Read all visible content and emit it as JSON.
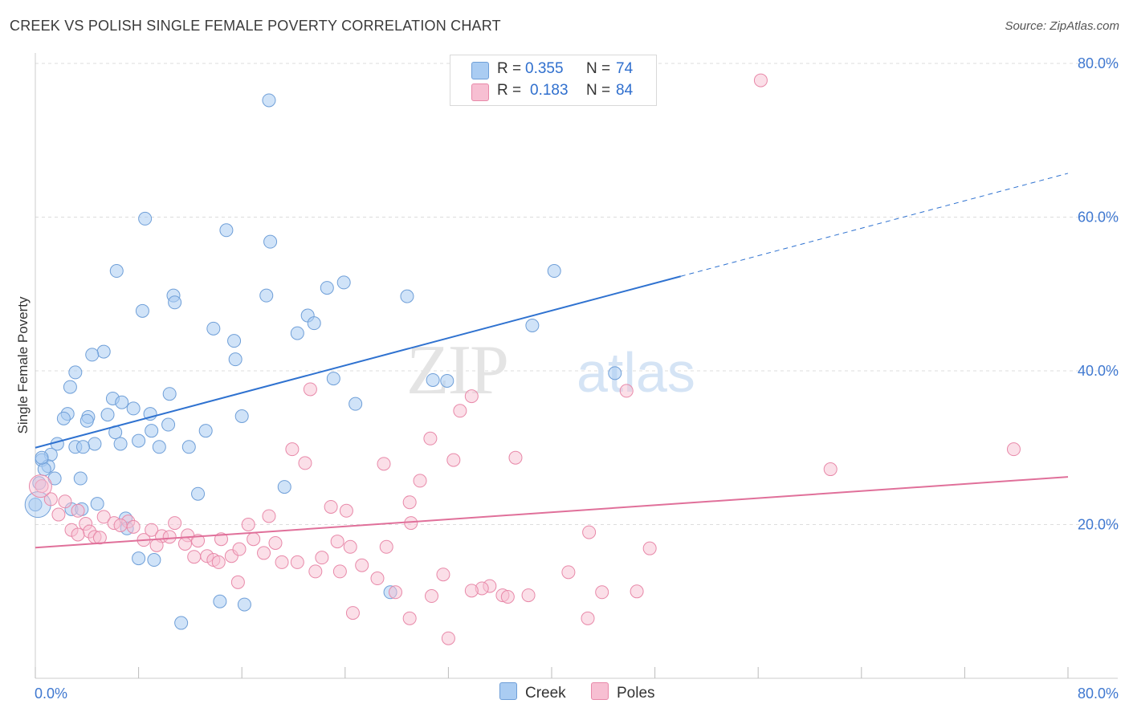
{
  "header": {
    "title": "CREEK VS POLISH SINGLE FEMALE POVERTY CORRELATION CHART",
    "source": "Source: ZipAtlas.com"
  },
  "watermark": {
    "left": "ZIP",
    "right": "atlas"
  },
  "legend": {
    "rows": [
      {
        "series": "Creek",
        "r_label": "R =",
        "r_value": "0.355",
        "n_label": "N =",
        "n_value": "74"
      },
      {
        "series": "Poles",
        "r_label": "R =",
        "r_value": "0.183",
        "n_label": "N =",
        "n_value": "84"
      }
    ],
    "bottom": [
      {
        "label": "Creek"
      },
      {
        "label": "Poles"
      }
    ]
  },
  "colors": {
    "creek_fill": "#aaccf2",
    "creek_stroke": "#6f9fd8",
    "creek_line": "#2f72d0",
    "poles_fill": "#f7bfd2",
    "poles_stroke": "#e889a9",
    "poles_line": "#e0709a",
    "axis_text": "#3f78d0",
    "grid": "#dddddd"
  },
  "chart_data": {
    "type": "scatter",
    "title": "CREEK VS POLISH SINGLE FEMALE POVERTY CORRELATION CHART",
    "xlabel": "",
    "ylabel": "Single Female Poverty",
    "xlim": [
      0,
      80
    ],
    "ylim": [
      0,
      80
    ],
    "x_tick_labels": [
      "0.0%",
      "80.0%"
    ],
    "y_tick_labels": [
      "20.0%",
      "40.0%",
      "60.0%",
      "80.0%"
    ],
    "y_ticks": [
      20,
      40,
      60,
      80
    ],
    "x_ticks": [
      0,
      8,
      16,
      24,
      32,
      40,
      48,
      56,
      64,
      72,
      80
    ],
    "series": [
      {
        "name": "Creek",
        "r": 0.355,
        "n": 74,
        "trend": {
          "x0": 0,
          "y0": 30,
          "x1": 50,
          "y1": 52.3,
          "x_dashed_end": 80,
          "y_dashed_end": 65.7
        },
        "points": [
          [
            18.1,
            75.2
          ],
          [
            8.5,
            59.8
          ],
          [
            14.8,
            58.3
          ],
          [
            18.2,
            56.8
          ],
          [
            6.3,
            53.0
          ],
          [
            40.2,
            53.0
          ],
          [
            23.9,
            51.5
          ],
          [
            22.6,
            50.8
          ],
          [
            17.9,
            49.8
          ],
          [
            28.8,
            49.7
          ],
          [
            10.7,
            49.8
          ],
          [
            10.8,
            48.9
          ],
          [
            8.3,
            47.8
          ],
          [
            21.1,
            47.2
          ],
          [
            21.6,
            46.2
          ],
          [
            20.3,
            44.9
          ],
          [
            13.8,
            45.5
          ],
          [
            15.4,
            43.9
          ],
          [
            38.5,
            45.9
          ],
          [
            5.3,
            42.5
          ],
          [
            4.4,
            42.1
          ],
          [
            15.5,
            41.5
          ],
          [
            3.1,
            39.8
          ],
          [
            23.1,
            39.0
          ],
          [
            44.9,
            39.7
          ],
          [
            30.8,
            38.8
          ],
          [
            31.9,
            38.7
          ],
          [
            2.7,
            37.9
          ],
          [
            10.4,
            37.0
          ],
          [
            6.0,
            36.4
          ],
          [
            24.8,
            35.7
          ],
          [
            6.7,
            35.9
          ],
          [
            2.5,
            34.4
          ],
          [
            7.6,
            35.1
          ],
          [
            2.2,
            33.8
          ],
          [
            4.1,
            34.0
          ],
          [
            5.6,
            34.3
          ],
          [
            8.9,
            34.4
          ],
          [
            16.0,
            34.1
          ],
          [
            4.0,
            33.5
          ],
          [
            10.3,
            33.0
          ],
          [
            9.0,
            32.2
          ],
          [
            6.2,
            32.0
          ],
          [
            13.2,
            32.2
          ],
          [
            8.0,
            30.9
          ],
          [
            1.7,
            30.5
          ],
          [
            4.6,
            30.5
          ],
          [
            6.6,
            30.5
          ],
          [
            3.1,
            30.1
          ],
          [
            3.7,
            30.1
          ],
          [
            11.9,
            30.1
          ],
          [
            9.6,
            30.1
          ],
          [
            1.2,
            29.1
          ],
          [
            0.5,
            28.4
          ],
          [
            1.0,
            27.6
          ],
          [
            0.7,
            27.2
          ],
          [
            1.5,
            26.0
          ],
          [
            3.5,
            26.0
          ],
          [
            0.3,
            25.4
          ],
          [
            19.3,
            24.9
          ],
          [
            12.6,
            24.0
          ],
          [
            0.0,
            22.6
          ],
          [
            4.8,
            22.7
          ],
          [
            2.8,
            22.0
          ],
          [
            3.6,
            22.0
          ],
          [
            7.0,
            20.8
          ],
          [
            7.1,
            19.5
          ],
          [
            8.0,
            15.6
          ],
          [
            9.2,
            15.4
          ],
          [
            27.5,
            11.2
          ],
          [
            14.3,
            10.0
          ],
          [
            16.2,
            9.6
          ],
          [
            11.3,
            7.2
          ],
          [
            0.5,
            28.7
          ]
        ]
      },
      {
        "name": "Poles",
        "r": 0.183,
        "n": 84,
        "trend": {
          "x0": 0,
          "y0": 17.0,
          "x1": 80,
          "y1": 26.2
        },
        "points": [
          [
            56.2,
            77.8
          ],
          [
            21.3,
            37.6
          ],
          [
            33.8,
            36.7
          ],
          [
            45.8,
            37.4
          ],
          [
            32.9,
            34.8
          ],
          [
            30.6,
            31.2
          ],
          [
            19.9,
            29.8
          ],
          [
            75.8,
            29.8
          ],
          [
            20.9,
            28.0
          ],
          [
            27.0,
            27.9
          ],
          [
            32.4,
            28.4
          ],
          [
            37.2,
            28.7
          ],
          [
            61.6,
            27.2
          ],
          [
            29.8,
            25.7
          ],
          [
            29.0,
            22.9
          ],
          [
            22.9,
            22.3
          ],
          [
            24.1,
            21.8
          ],
          [
            18.1,
            21.1
          ],
          [
            0.5,
            25.0
          ],
          [
            1.2,
            23.3
          ],
          [
            2.3,
            23.0
          ],
          [
            1.8,
            21.3
          ],
          [
            3.3,
            21.8
          ],
          [
            29.1,
            20.2
          ],
          [
            16.5,
            20.0
          ],
          [
            5.3,
            21.0
          ],
          [
            6.1,
            20.2
          ],
          [
            7.2,
            20.4
          ],
          [
            10.8,
            20.2
          ],
          [
            3.9,
            20.1
          ],
          [
            2.8,
            19.3
          ],
          [
            4.2,
            19.1
          ],
          [
            4.6,
            18.4
          ],
          [
            5.0,
            18.3
          ],
          [
            6.6,
            19.9
          ],
          [
            7.6,
            19.7
          ],
          [
            8.4,
            18.0
          ],
          [
            9.0,
            19.3
          ],
          [
            9.8,
            18.5
          ],
          [
            10.4,
            18.4
          ],
          [
            11.8,
            18.6
          ],
          [
            12.6,
            17.9
          ],
          [
            14.4,
            18.1
          ],
          [
            16.9,
            18.1
          ],
          [
            18.6,
            17.6
          ],
          [
            23.4,
            17.8
          ],
          [
            24.4,
            17.1
          ],
          [
            27.2,
            17.1
          ],
          [
            42.9,
            19.0
          ],
          [
            3.3,
            18.7
          ],
          [
            9.4,
            17.3
          ],
          [
            11.6,
            17.5
          ],
          [
            12.3,
            15.8
          ],
          [
            13.3,
            15.9
          ],
          [
            13.8,
            15.4
          ],
          [
            15.2,
            15.9
          ],
          [
            17.7,
            16.3
          ],
          [
            15.8,
            16.8
          ],
          [
            19.1,
            15.1
          ],
          [
            20.3,
            15.1
          ],
          [
            22.2,
            15.7
          ],
          [
            23.6,
            13.9
          ],
          [
            25.3,
            14.7
          ],
          [
            26.5,
            13.0
          ],
          [
            21.7,
            13.9
          ],
          [
            14.2,
            15.1
          ],
          [
            47.6,
            16.9
          ],
          [
            31.6,
            13.5
          ],
          [
            41.3,
            13.8
          ],
          [
            35.2,
            12.0
          ],
          [
            34.6,
            11.7
          ],
          [
            15.7,
            12.5
          ],
          [
            27.9,
            11.2
          ],
          [
            36.2,
            10.8
          ],
          [
            36.6,
            10.6
          ],
          [
            30.7,
            10.7
          ],
          [
            33.8,
            11.4
          ],
          [
            43.9,
            11.2
          ],
          [
            46.6,
            11.3
          ],
          [
            38.2,
            10.8
          ],
          [
            24.6,
            8.5
          ],
          [
            29.0,
            7.8
          ],
          [
            42.8,
            7.8
          ],
          [
            32.0,
            5.2
          ]
        ]
      }
    ]
  }
}
